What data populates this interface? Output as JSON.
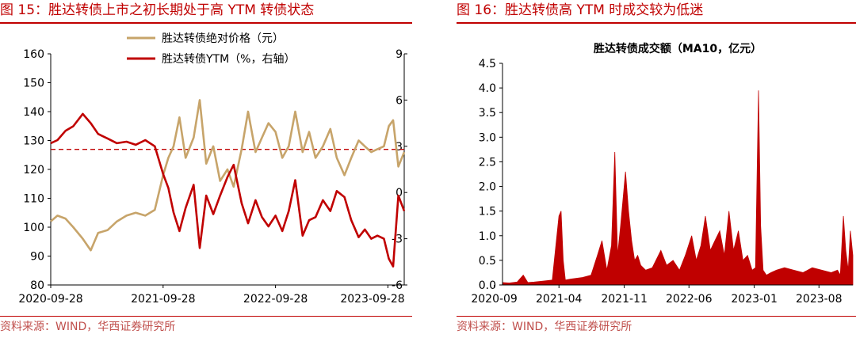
{
  "left_panel": {
    "figure_title": "图 15：胜达转债上市之初长期处于高 YTM 转债状态",
    "source": "资料来源：WIND，华西证券研究所"
  },
  "right_panel": {
    "figure_title": "图 16：胜达转债高 YTM 时成交较为低迷",
    "source": "资料来源：WIND，华西证券研究所"
  },
  "colors": {
    "price": "#c7a46a",
    "ytm": "#c00000",
    "volume": "#c00000",
    "accent": "#c00000",
    "source_text": "#c0504d"
  },
  "chart_data": [
    {
      "type": "line",
      "legend": "top-center",
      "xlim": [
        "2020-09-28",
        "2023-11-20"
      ],
      "x_ticks": [
        "2020-09-28",
        "2021-09-28",
        "2022-09-28",
        "2023-09-28"
      ],
      "ylim": [
        80,
        160
      ],
      "y_ticks": [
        80,
        90,
        100,
        110,
        120,
        130,
        140,
        150,
        160
      ],
      "y2lim": [
        -6,
        9
      ],
      "y2_ticks": [
        -6,
        -3,
        0,
        3,
        6,
        9
      ],
      "reference_line": {
        "axis": "y2",
        "value": 2.8,
        "style": "dashed"
      },
      "series": [
        {
          "name": "胜达转债绝对价格（元）",
          "axis": "y",
          "color": "#c7a46a",
          "x": [
            "2020-09-28",
            "2020-10-20",
            "2020-11-15",
            "2020-12-10",
            "2021-01-10",
            "2021-02-05",
            "2021-03-01",
            "2021-04-01",
            "2021-05-01",
            "2021-06-01",
            "2021-07-01",
            "2021-08-01",
            "2021-09-01",
            "2021-09-28",
            "2021-10-15",
            "2021-11-01",
            "2021-11-20",
            "2021-12-10",
            "2022-01-05",
            "2022-01-25",
            "2022-02-15",
            "2022-03-10",
            "2022-04-01",
            "2022-04-25",
            "2022-05-15",
            "2022-06-10",
            "2022-07-01",
            "2022-07-25",
            "2022-08-15",
            "2022-09-05",
            "2022-09-28",
            "2022-10-20",
            "2022-11-10",
            "2022-12-01",
            "2022-12-25",
            "2023-01-15",
            "2023-02-05",
            "2023-03-01",
            "2023-03-25",
            "2023-04-15",
            "2023-05-10",
            "2023-06-01",
            "2023-06-25",
            "2023-07-15",
            "2023-08-05",
            "2023-08-25",
            "2023-09-15",
            "2023-10-01",
            "2023-10-15",
            "2023-11-01",
            "2023-11-20"
          ],
          "y": [
            102,
            104,
            103,
            100,
            96,
            92,
            98,
            99,
            102,
            104,
            105,
            104,
            106,
            118,
            124,
            128,
            138,
            124,
            131,
            144,
            122,
            128,
            116,
            120,
            114,
            127,
            140,
            126,
            131,
            136,
            133,
            124,
            128,
            140,
            126,
            133,
            124,
            128,
            134,
            124,
            118,
            124,
            130,
            128,
            126,
            127,
            128,
            135,
            137,
            121,
            126
          ]
        },
        {
          "name": "胜达转债YTM（%，右轴）",
          "axis": "y2",
          "color": "#c00000",
          "x": [
            "2020-09-28",
            "2020-10-20",
            "2020-11-15",
            "2020-12-10",
            "2021-01-10",
            "2021-02-05",
            "2021-03-01",
            "2021-04-01",
            "2021-05-01",
            "2021-06-01",
            "2021-07-01",
            "2021-08-01",
            "2021-09-01",
            "2021-09-28",
            "2021-10-15",
            "2021-11-01",
            "2021-11-20",
            "2021-12-10",
            "2022-01-05",
            "2022-01-25",
            "2022-02-15",
            "2022-03-10",
            "2022-04-01",
            "2022-04-25",
            "2022-05-15",
            "2022-06-10",
            "2022-07-01",
            "2022-07-25",
            "2022-08-15",
            "2022-09-05",
            "2022-09-28",
            "2022-10-20",
            "2022-11-10",
            "2022-12-01",
            "2022-12-25",
            "2023-01-15",
            "2023-02-05",
            "2023-03-01",
            "2023-03-25",
            "2023-04-15",
            "2023-05-10",
            "2023-06-01",
            "2023-06-25",
            "2023-07-15",
            "2023-08-05",
            "2023-08-25",
            "2023-09-15",
            "2023-10-01",
            "2023-10-15",
            "2023-11-01",
            "2023-11-20"
          ],
          "y": [
            3.2,
            3.4,
            4.0,
            4.3,
            5.1,
            4.5,
            3.8,
            3.5,
            3.2,
            3.3,
            3.1,
            3.4,
            3.0,
            1.2,
            0.3,
            -1.3,
            -2.5,
            -1.0,
            0.5,
            -3.6,
            -0.2,
            -1.4,
            -0.2,
            1.0,
            1.8,
            -0.7,
            -2.0,
            -0.5,
            -1.6,
            -2.2,
            -1.5,
            -2.5,
            -1.2,
            0.8,
            -2.8,
            -1.8,
            -1.6,
            -0.5,
            -1.2,
            0.1,
            -0.3,
            -1.8,
            -2.9,
            -2.4,
            -3.0,
            -2.8,
            -3.0,
            -4.3,
            -4.8,
            -0.2,
            -1.2
          ]
        }
      ]
    },
    {
      "type": "area",
      "title": "胜达转债成交额（MA10，亿元）",
      "color": "#c00000",
      "xlim": [
        "2020-09-28",
        "2023-11-20"
      ],
      "x_ticks": [
        "2020-09",
        "2021-04",
        "2021-11",
        "2022-06",
        "2023-01",
        "2023-08"
      ],
      "ylim": [
        0,
        4.5
      ],
      "y_ticks": [
        0.0,
        0.5,
        1.0,
        1.5,
        2.0,
        2.5,
        3.0,
        3.5,
        4.0,
        4.5
      ],
      "x": [
        "2020-09-28",
        "2020-10-20",
        "2020-11-15",
        "2020-12-05",
        "2020-12-20",
        "2021-01-10",
        "2021-02-10",
        "2021-03-10",
        "2021-04-01",
        "2021-04-08",
        "2021-04-15",
        "2021-04-22",
        "2021-05-10",
        "2021-06-15",
        "2021-07-15",
        "2021-08-05",
        "2021-08-20",
        "2021-09-05",
        "2021-09-20",
        "2021-10-01",
        "2021-10-10",
        "2021-10-20",
        "2021-11-05",
        "2021-11-15",
        "2021-11-25",
        "2021-12-05",
        "2021-12-15",
        "2021-12-25",
        "2022-01-10",
        "2022-02-01",
        "2022-03-01",
        "2022-03-20",
        "2022-04-10",
        "2022-05-01",
        "2022-05-20",
        "2022-06-10",
        "2022-06-25",
        "2022-07-10",
        "2022-07-25",
        "2022-08-10",
        "2022-08-25",
        "2022-09-10",
        "2022-09-25",
        "2022-10-10",
        "2022-10-25",
        "2022-11-10",
        "2022-11-25",
        "2022-12-10",
        "2022-12-25",
        "2023-01-05",
        "2023-01-15",
        "2023-01-22",
        "2023-01-30",
        "2023-02-10",
        "2023-02-25",
        "2023-03-15",
        "2023-04-10",
        "2023-05-10",
        "2023-06-10",
        "2023-07-10",
        "2023-08-10",
        "2023-09-10",
        "2023-10-01",
        "2023-10-10",
        "2023-10-20",
        "2023-10-28",
        "2023-11-05",
        "2023-11-12",
        "2023-11-20"
      ],
      "values": [
        0.05,
        0.04,
        0.06,
        0.2,
        0.05,
        0.06,
        0.08,
        0.1,
        1.4,
        1.5,
        0.5,
        0.1,
        0.12,
        0.15,
        0.2,
        0.6,
        0.9,
        0.3,
        0.8,
        2.7,
        0.6,
        1.2,
        2.3,
        1.5,
        0.9,
        0.5,
        0.6,
        0.4,
        0.3,
        0.35,
        0.7,
        0.4,
        0.5,
        0.3,
        0.6,
        1.0,
        0.5,
        0.8,
        1.4,
        0.7,
        0.9,
        1.1,
        0.6,
        1.5,
        0.7,
        1.1,
        0.5,
        0.6,
        0.3,
        0.35,
        3.95,
        1.2,
        0.3,
        0.2,
        0.25,
        0.3,
        0.35,
        0.3,
        0.25,
        0.35,
        0.3,
        0.25,
        0.3,
        0.2,
        1.4,
        0.7,
        0.3,
        1.1,
        0.6
      ]
    }
  ]
}
